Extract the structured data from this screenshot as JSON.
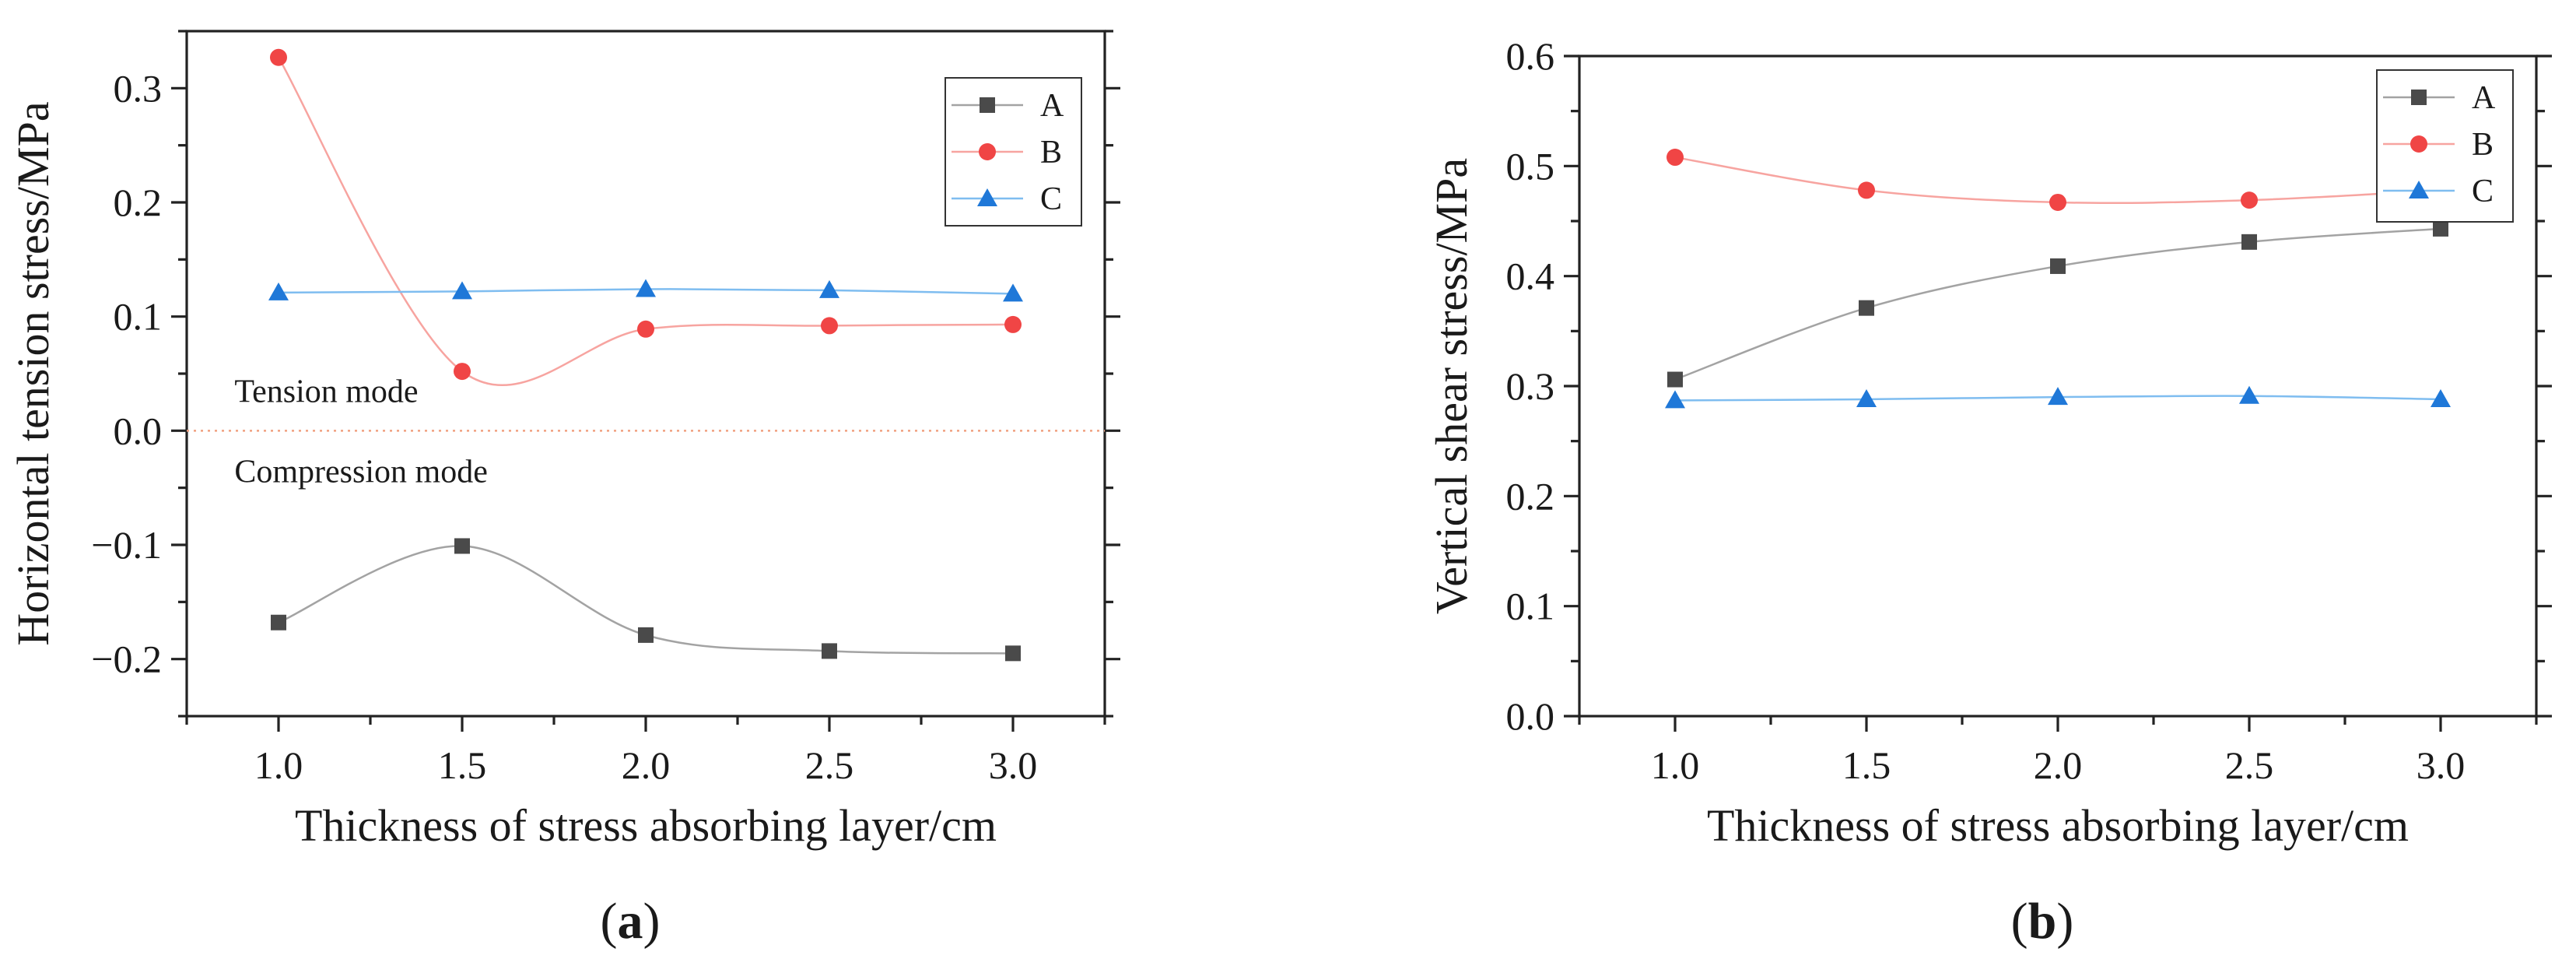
{
  "colors": {
    "A": "#4a4a4a",
    "B": "#f04545",
    "C": "#1f78d8",
    "A_line": "#a3a3a3",
    "B_line": "#f7a4a0",
    "C_line": "#7fbdf0",
    "zero_line": "#f0a080"
  },
  "chart_data": [
    {
      "type": "scatter",
      "panel": "(a)",
      "panel_letter": "a",
      "xlabel": "Thickness of stress absorbing layer/cm",
      "ylabel": "Horizontal tension stress/MPa",
      "xlim": [
        0.75,
        3.25
      ],
      "ylim": [
        -0.25,
        0.35
      ],
      "xticks": [
        1.0,
        1.5,
        2.0,
        2.5,
        3.0
      ],
      "xtick_labels": [
        "1.0",
        "1.5",
        "2.0",
        "2.5",
        "3.0"
      ],
      "yticks": [
        -0.2,
        -0.1,
        0.0,
        0.1,
        0.2,
        0.3
      ],
      "ytick_labels": [
        "−0.2",
        "−0.1",
        "0.0",
        "0.1",
        "0.2",
        "0.3"
      ],
      "x": [
        1.0,
        1.5,
        2.0,
        2.5,
        3.0
      ],
      "series": [
        {
          "name": "A",
          "marker": "square",
          "values": [
            -0.168,
            -0.101,
            -0.179,
            -0.193,
            -0.195
          ]
        },
        {
          "name": "B",
          "marker": "circle",
          "values": [
            0.327,
            0.052,
            0.089,
            0.092,
            0.093
          ]
        },
        {
          "name": "C",
          "marker": "triangle",
          "values": [
            0.121,
            0.122,
            0.124,
            0.123,
            0.12
          ]
        }
      ],
      "legend_entries": [
        "A",
        "B",
        "C"
      ],
      "legend_position": "top-right",
      "reference_line": {
        "y": 0.0,
        "style": "dotted"
      },
      "annotations": [
        {
          "text": "Tension mode",
          "x": 0.88,
          "y": 0.025
        },
        {
          "text": "Compression mode",
          "x": 0.88,
          "y": -0.045
        }
      ]
    },
    {
      "type": "scatter",
      "panel": "(b)",
      "panel_letter": "b",
      "xlabel": "Thickness of stress absorbing layer/cm",
      "ylabel": "Vertical shear stress/MPa",
      "xlim": [
        0.75,
        3.25
      ],
      "ylim": [
        0.0,
        0.6
      ],
      "xticks": [
        1.0,
        1.5,
        2.0,
        2.5,
        3.0
      ],
      "xtick_labels": [
        "1.0",
        "1.5",
        "2.0",
        "2.5",
        "3.0"
      ],
      "yticks": [
        0.0,
        0.1,
        0.2,
        0.3,
        0.4,
        0.5,
        0.6
      ],
      "ytick_labels": [
        "0.0",
        "0.1",
        "0.2",
        "0.3",
        "0.4",
        "0.5",
        "0.6"
      ],
      "x": [
        1.0,
        1.5,
        2.0,
        2.5,
        3.0
      ],
      "series": [
        {
          "name": "A",
          "marker": "square",
          "values": [
            0.306,
            0.371,
            0.409,
            0.431,
            0.443
          ]
        },
        {
          "name": "B",
          "marker": "circle",
          "values": [
            0.508,
            0.478,
            0.467,
            0.469,
            0.478
          ]
        },
        {
          "name": "C",
          "marker": "triangle",
          "values": [
            0.287,
            0.288,
            0.29,
            0.291,
            0.288
          ]
        }
      ],
      "legend_entries": [
        "A",
        "B",
        "C"
      ],
      "legend_position": "top-right",
      "annotations": []
    }
  ]
}
